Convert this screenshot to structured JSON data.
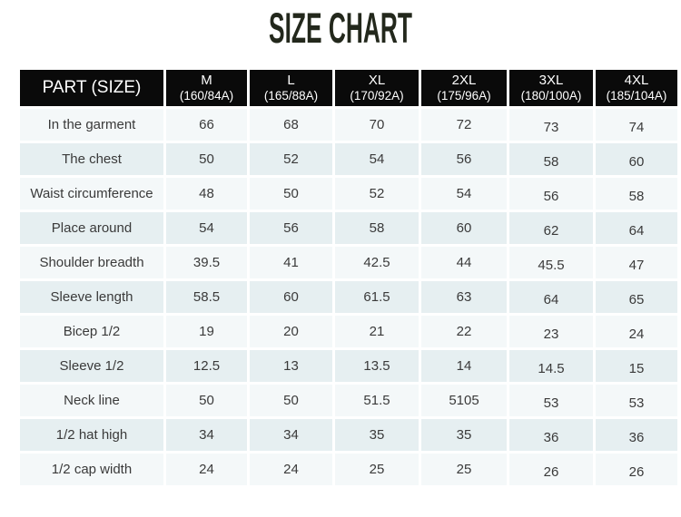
{
  "colors": {
    "title_text": "#23281c",
    "header_bg": "#0a0a0a",
    "header_text": "#ffffff",
    "row_light": "#f4f8f9",
    "row_dark": "#e6eff1",
    "cell_text": "#3a3a3a",
    "page_bg": "#ffffff"
  },
  "chart_data": {
    "type": "table",
    "title": "SIZE CHART",
    "columns": [
      {
        "line1": "PART (SIZE)",
        "line2": ""
      },
      {
        "line1": "M",
        "line2": "(160/84A)"
      },
      {
        "line1": "L",
        "line2": "(165/88A)"
      },
      {
        "line1": "XL",
        "line2": "(170/92A)"
      },
      {
        "line1": "2XL",
        "line2": "(175/96A)"
      },
      {
        "line1": "3XL",
        "line2": "(180/100A)"
      },
      {
        "line1": "4XL",
        "line2": "(185/104A)"
      }
    ],
    "rows": [
      {
        "part": "In the garment",
        "values": [
          "66",
          "68",
          "70",
          "72",
          "73",
          "74"
        ]
      },
      {
        "part": "The chest",
        "values": [
          "50",
          "52",
          "54",
          "56",
          "58",
          "60"
        ]
      },
      {
        "part": "Waist circumference",
        "values": [
          "48",
          "50",
          "52",
          "54",
          "56",
          "58"
        ]
      },
      {
        "part": "Place around",
        "values": [
          "54",
          "56",
          "58",
          "60",
          "62",
          "64"
        ]
      },
      {
        "part": "Shoulder breadth",
        "values": [
          "39.5",
          "41",
          "42.5",
          "44",
          "45.5",
          "47"
        ]
      },
      {
        "part": "Sleeve length",
        "values": [
          "58.5",
          "60",
          "61.5",
          "63",
          "64",
          "65"
        ]
      },
      {
        "part": "Bicep 1/2",
        "values": [
          "19",
          "20",
          "21",
          "22",
          "23",
          "24"
        ]
      },
      {
        "part": "Sleeve 1/2",
        "values": [
          "12.5",
          "13",
          "13.5",
          "14",
          "14.5",
          "15"
        ]
      },
      {
        "part": "Neck line",
        "values": [
          "50",
          "50",
          "51.5",
          "5105",
          "53",
          "53"
        ]
      },
      {
        "part": "1/2 hat high",
        "values": [
          "34",
          "34",
          "35",
          "35",
          "36",
          "36"
        ]
      },
      {
        "part": "1/2 cap width",
        "values": [
          "24",
          "24",
          "25",
          "25",
          "26",
          "26"
        ]
      }
    ]
  }
}
